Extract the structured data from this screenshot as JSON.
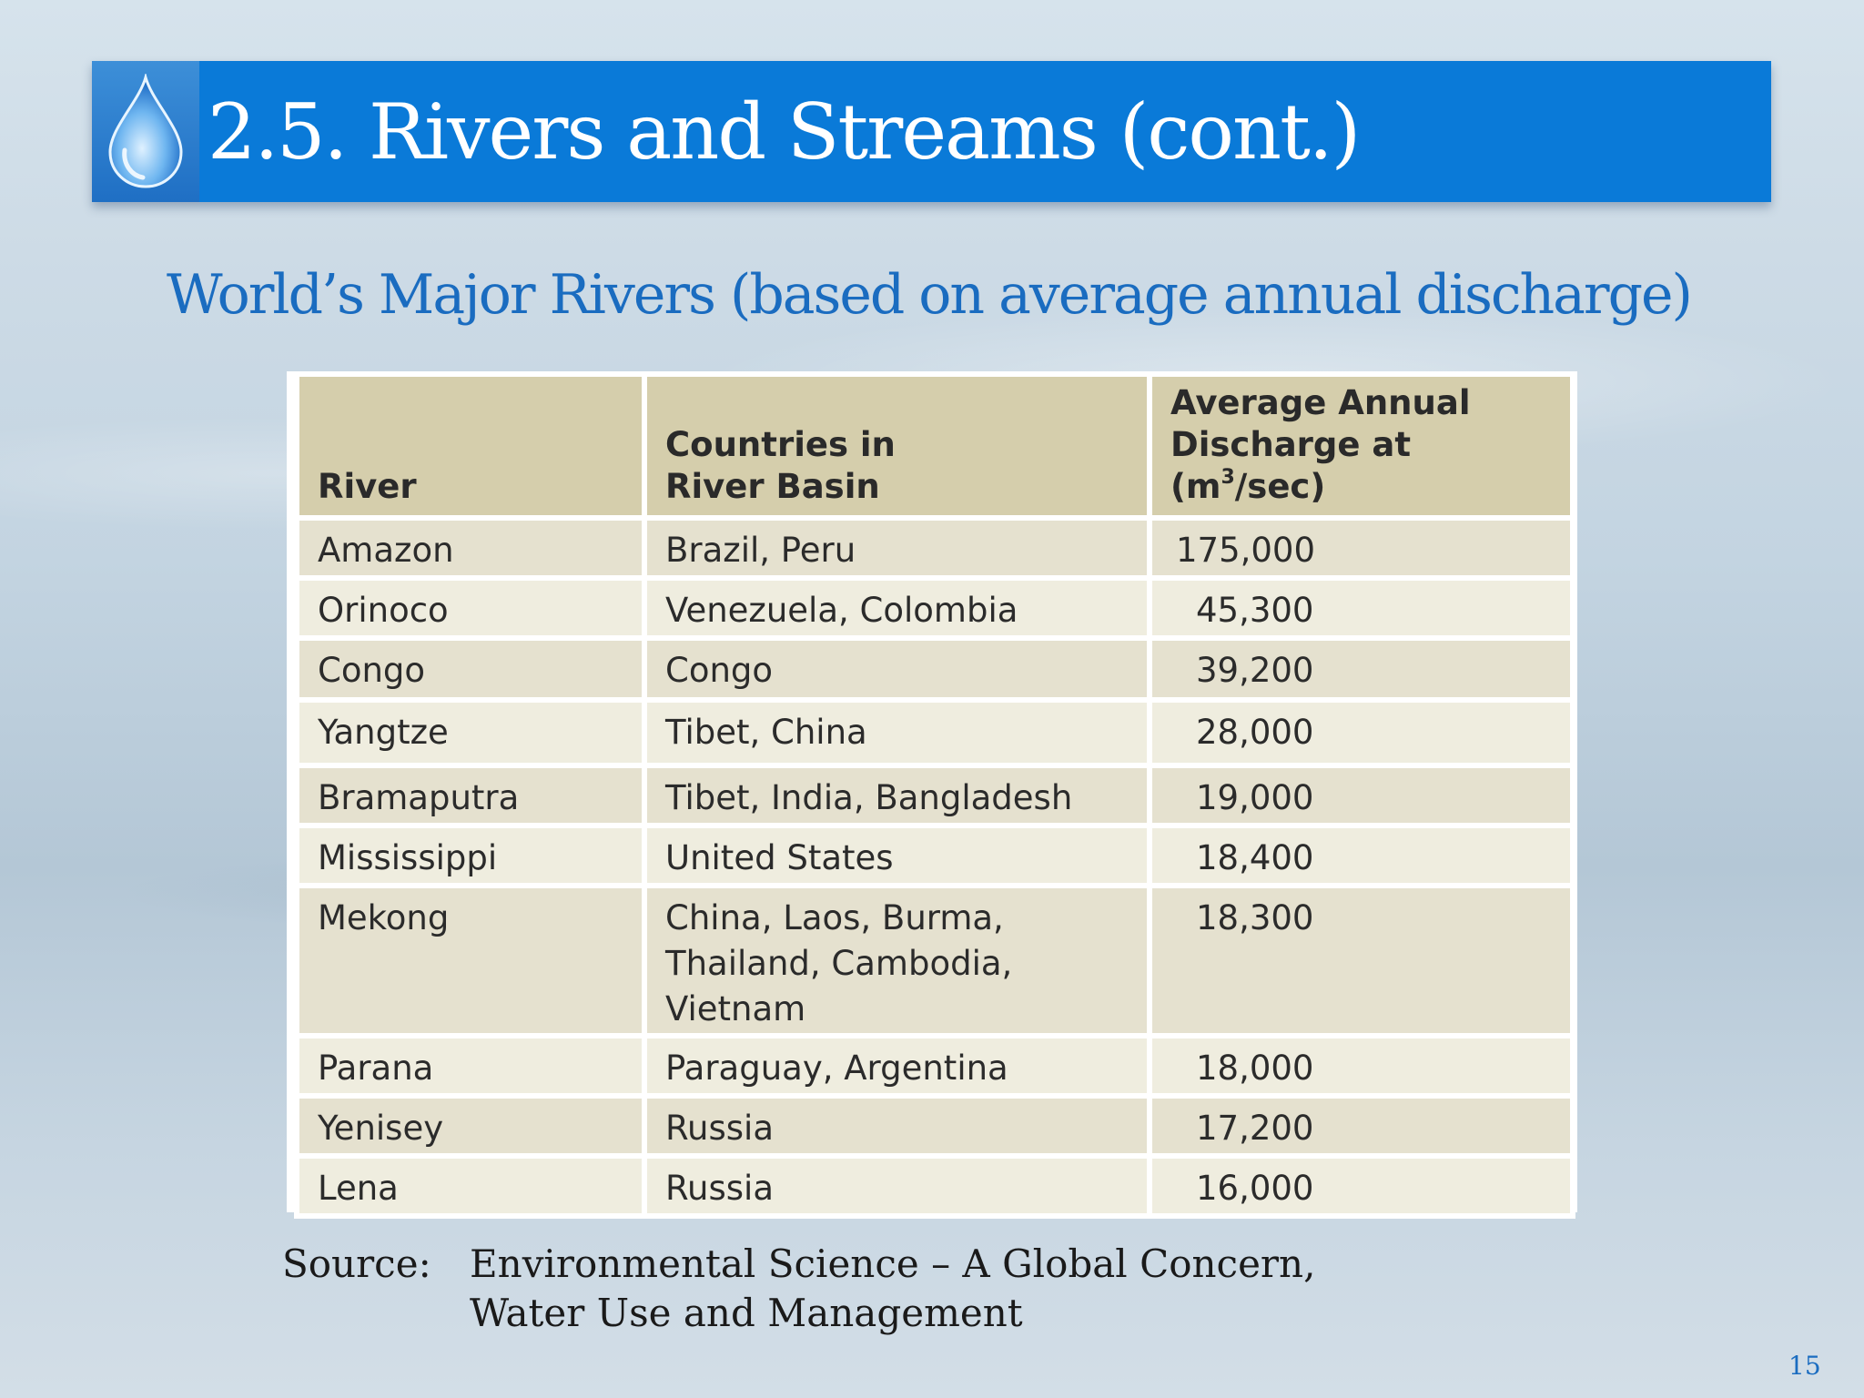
{
  "header": {
    "title": "2.5. Rivers and Streams (cont.)",
    "icon": "water-drop-icon",
    "bar_color": "#0a7ad8"
  },
  "subtitle": "World’s Major Rivers (based on average annual discharge)",
  "table": {
    "headers": {
      "river": "River",
      "countries_line1": "Countries in",
      "countries_line2": "River Basin",
      "discharge_line1": "Average Annual",
      "discharge_line2": "Discharge at",
      "discharge_unit_prefix": "(m",
      "discharge_unit_sup": "3",
      "discharge_unit_suffix": "/sec)"
    },
    "rows": [
      {
        "river": "Amazon",
        "countries": [
          "Brazil, Peru"
        ],
        "discharge": "175,000"
      },
      {
        "river": "Orinoco",
        "countries": [
          "Venezuela, Colombia"
        ],
        "discharge": "45,300"
      },
      {
        "river": "Congo",
        "countries": [
          "Congo"
        ],
        "discharge": "39,200"
      },
      {
        "river": "Yangtze",
        "countries": [
          "Tibet, China"
        ],
        "discharge": "28,000"
      },
      {
        "river": "Bramaputra",
        "countries": [
          "Tibet, India, Bangladesh"
        ],
        "discharge": "19,000"
      },
      {
        "river": "Mississippi",
        "countries": [
          "United States"
        ],
        "discharge": "18,400"
      },
      {
        "river": "Mekong",
        "countries": [
          "China, Laos, Burma,",
          "Thailand, Cambodia,",
          "Vietnam"
        ],
        "discharge": "18,300"
      },
      {
        "river": "Parana",
        "countries": [
          "Paraguay, Argentina"
        ],
        "discharge": "18,000"
      },
      {
        "river": "Yenisey",
        "countries": [
          "Russia"
        ],
        "discharge": "17,200"
      },
      {
        "river": "Lena",
        "countries": [
          "Russia"
        ],
        "discharge": "16,000"
      }
    ]
  },
  "source": {
    "label": "Source:",
    "line1": "Environmental Science – A Global Concern,",
    "line2": "Water Use and Management"
  },
  "page_number": "15"
}
